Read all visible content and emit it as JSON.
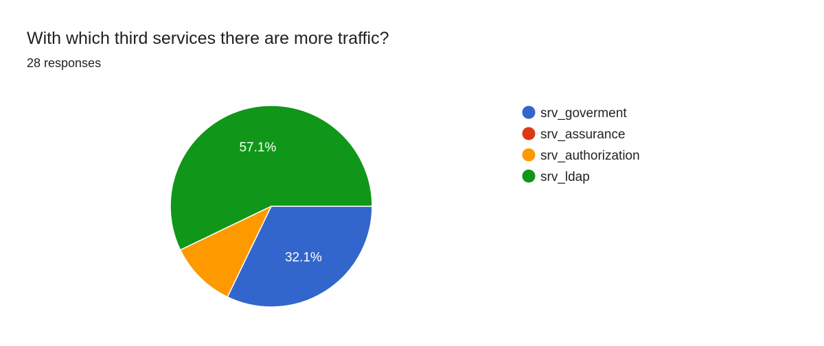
{
  "header": {
    "title": "With which third services there are more traffic?",
    "subtitle": "28 responses"
  },
  "chart_data": {
    "type": "pie",
    "title": "With which third services there are more traffic?",
    "subtitle": "28 responses",
    "total_responses": 28,
    "legend_position": "right",
    "slices": [
      {
        "name": "srv_goverment",
        "value": 9,
        "percent": 32.1,
        "label": "32.1%",
        "color": "#3366cc"
      },
      {
        "name": "srv_assurance",
        "value": 0,
        "percent": 0,
        "label": "",
        "color": "#dc3912"
      },
      {
        "name": "srv_authorization",
        "value": 3,
        "percent": 10.7,
        "label": "",
        "color": "#ff9900"
      },
      {
        "name": "srv_ldap",
        "value": 16,
        "percent": 57.1,
        "label": "57.1%",
        "color": "#109618"
      }
    ]
  }
}
